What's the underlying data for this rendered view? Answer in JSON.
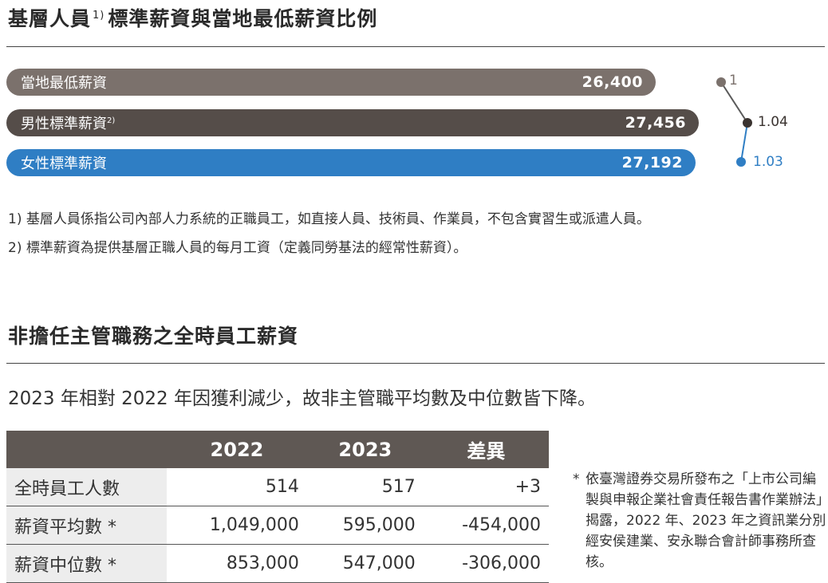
{
  "section1": {
    "title": "基層人員",
    "title_sup": "1)",
    "title_rest": "標準薪資與當地最低薪資比例",
    "bars": [
      {
        "label": "當地最低薪資",
        "value": "26,400",
        "color": "#7b716c"
      },
      {
        "label": "男性標準薪資",
        "label_sup": "2)",
        "value": "27,456",
        "color": "#554d49"
      },
      {
        "label": "女性標準薪資",
        "value": "27,192",
        "color": "#2f7ec4"
      }
    ],
    "ratios": [
      "1",
      "1.04",
      "1.03"
    ],
    "notes": [
      "1) 基層人員係指公司內部人力系統的正職員工，如直接人員、技術員、作業員，不包含實習生或派遣人員。",
      "2) 標準薪資為提供基層正職人員的每月工資（定義同勞基法的經常性薪資）。"
    ]
  },
  "section2": {
    "title": "非擔任主管職務之全時員工薪資",
    "description": "2023 年相對 2022 年因獲利減少，故非主管職平均數及中位數皆下降。",
    "table": {
      "headers": [
        "",
        "2022",
        "2023",
        "差異"
      ],
      "rows": [
        {
          "label": "全時員工人數",
          "v2022": "514",
          "v2023": "517",
          "diff": "+3"
        },
        {
          "label": "薪資平均數 *",
          "v2022": "1,049,000",
          "v2023": "595,000",
          "diff": "-454,000"
        },
        {
          "label": "薪資中位數 *",
          "v2022": "853,000",
          "v2023": "547,000",
          "diff": "-306,000"
        }
      ]
    },
    "footnote_star": "*",
    "footnote": "依臺灣證券交易所發布之「上市公司編製與申報企業社會責任報告書作業辦法」揭露，2022 年、2023 年之資訊業分別經安侯建業、安永聯合會計師事務所查核。"
  }
}
